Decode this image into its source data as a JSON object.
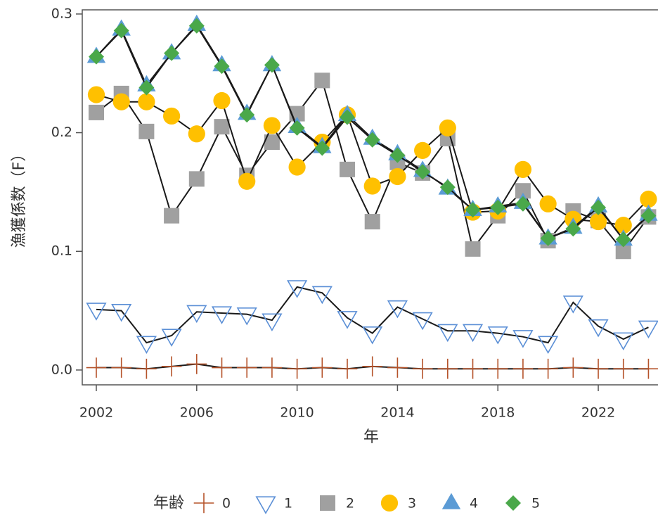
{
  "chart_data": {
    "type": "line",
    "x": [
      2002,
      2003,
      2004,
      2005,
      2006,
      2007,
      2008,
      2009,
      2010,
      2011,
      2012,
      2013,
      2014,
      2015,
      2016,
      2017,
      2018,
      2019,
      2020,
      2021,
      2022,
      2023,
      2024
    ],
    "series": [
      {
        "name": "0",
        "color": "#b5532a",
        "marker": "plus",
        "values": [
          0.002,
          0.002,
          0.001,
          0.003,
          0.005,
          0.002,
          0.002,
          0.002,
          0.001,
          0.002,
          0.001,
          0.003,
          0.002,
          0.001,
          0.001,
          0.001,
          0.001,
          0.001,
          0.001,
          0.002,
          0.001,
          0.001,
          0.001
        ]
      },
      {
        "name": "1",
        "color": "#5b8fd6",
        "marker": "triangle-down-open",
        "values": [
          0.051,
          0.05,
          0.023,
          0.029,
          0.049,
          0.048,
          0.047,
          0.042,
          0.07,
          0.065,
          0.044,
          0.031,
          0.053,
          0.043,
          0.033,
          0.033,
          0.031,
          0.028,
          0.023,
          0.057,
          0.037,
          0.026,
          0.036
        ]
      },
      {
        "name": "2",
        "color": "#a0a0a0",
        "marker": "square",
        "values": [
          0.217,
          0.233,
          0.201,
          0.13,
          0.161,
          0.205,
          0.164,
          0.192,
          0.216,
          0.244,
          0.169,
          0.125,
          0.175,
          0.166,
          0.195,
          0.102,
          0.13,
          0.151,
          0.109,
          0.134,
          0.126,
          0.1,
          0.129
        ]
      },
      {
        "name": "3",
        "color": "#ffc000",
        "marker": "circle",
        "values": [
          0.232,
          0.226,
          0.226,
          0.214,
          0.199,
          0.227,
          0.159,
          0.206,
          0.171,
          0.192,
          0.215,
          0.155,
          0.163,
          0.185,
          0.204,
          0.133,
          0.134,
          0.169,
          0.14,
          0.127,
          0.125,
          0.122,
          0.144
        ]
      },
      {
        "name": "4",
        "color": "#5b9bd5",
        "marker": "triangle-up",
        "values": [
          0.264,
          0.287,
          0.24,
          0.267,
          0.291,
          0.257,
          0.216,
          0.257,
          0.205,
          0.188,
          0.215,
          0.195,
          0.182,
          0.168,
          0.153,
          0.135,
          0.138,
          0.141,
          0.111,
          0.12,
          0.138,
          0.11,
          0.131
        ]
      },
      {
        "name": "5",
        "color": "#4aa84a",
        "marker": "diamond",
        "values": [
          0.264,
          0.286,
          0.238,
          0.267,
          0.29,
          0.256,
          0.215,
          0.257,
          0.204,
          0.187,
          0.213,
          0.194,
          0.181,
          0.167,
          0.154,
          0.135,
          0.137,
          0.14,
          0.111,
          0.119,
          0.137,
          0.11,
          0.13
        ]
      }
    ],
    "xlabel": "年",
    "ylabel": "漁獲係数（F）",
    "legend_title": "年齢",
    "xlim": [
      2001.44,
      2024.38
    ],
    "xticks": [
      2002,
      2006,
      2010,
      2014,
      2018,
      2022
    ],
    "ylim": [
      -0.0125,
      0.3035
    ],
    "yticks": [
      {
        "value": 0,
        "label": "0.0"
      },
      0.1,
      0.2,
      0.3
    ],
    "legend": "bottom",
    "line_color": "#1a1a1a"
  }
}
